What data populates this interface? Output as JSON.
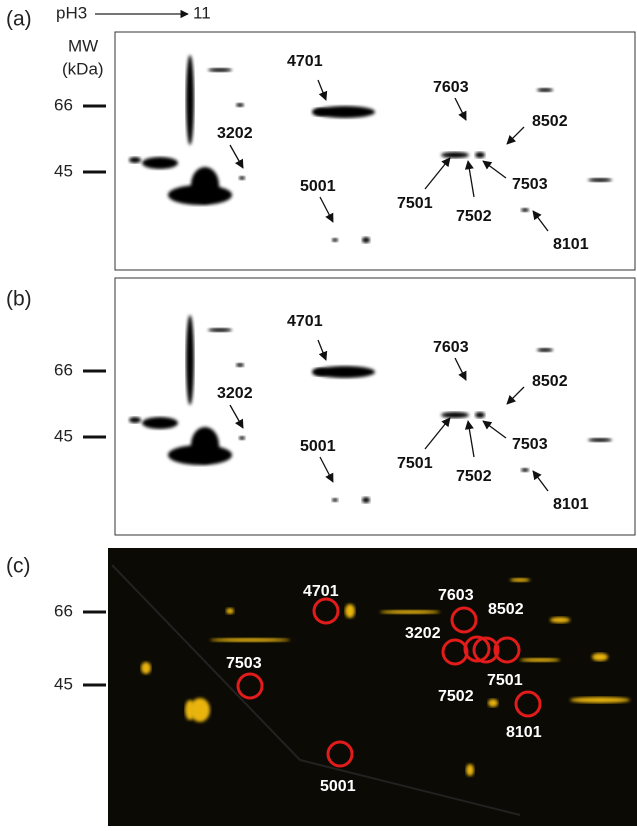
{
  "header": {
    "ph_start": "pH3",
    "ph_end": "11",
    "mw_label": "MW",
    "mw_unit": "(kDa)"
  },
  "panels": [
    {
      "label": "(a)",
      "mw_markers": [
        "66",
        "45"
      ],
      "spots": [
        "4701",
        "7603",
        "8502",
        "3202",
        "7501",
        "7503",
        "7502",
        "5001",
        "8101"
      ]
    },
    {
      "label": "(b)",
      "mw_markers": [
        "66",
        "45"
      ],
      "spots": [
        "4701",
        "7603",
        "8502",
        "3202",
        "7501",
        "7503",
        "7502",
        "5001",
        "8101"
      ]
    },
    {
      "label": "(c)",
      "mw_markers": [
        "66",
        "45"
      ],
      "spots": [
        "4701",
        "7603",
        "8502",
        "3202",
        "7501",
        "7503",
        "7502",
        "5001",
        "8101"
      ]
    }
  ]
}
